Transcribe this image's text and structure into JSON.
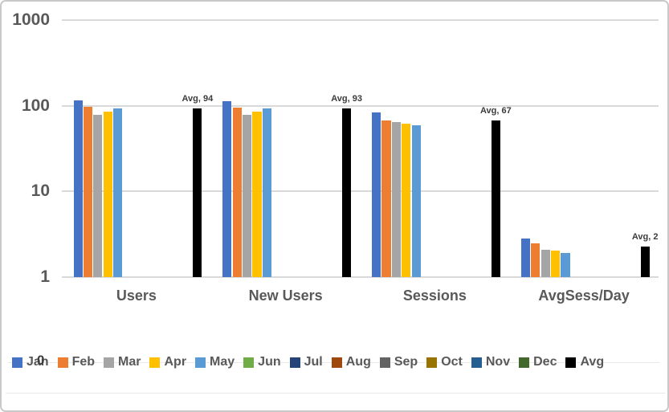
{
  "chart_data": {
    "type": "bar",
    "title": "",
    "xlabel": "",
    "ylabel": "",
    "scale": "log",
    "grid": true,
    "legend_position": "bottom",
    "ylim": [
      1,
      1000
    ],
    "y_ticks": [
      {
        "label": "1000",
        "value": 1000
      },
      {
        "label": "100",
        "value": 100
      },
      {
        "label": "10",
        "value": 10
      },
      {
        "label": "1",
        "value": 1
      }
    ],
    "categories": [
      "Users",
      "New Users",
      "Sessions",
      "AvgSess/Day"
    ],
    "series": [
      {
        "name": "Jan",
        "color": "#4472C4",
        "values": [
          116,
          114,
          84,
          2.8
        ]
      },
      {
        "name": "Feb",
        "color": "#ED7D31",
        "values": [
          97,
          96,
          67,
          2.5
        ]
      },
      {
        "name": "Mar",
        "color": "#A5A5A5",
        "values": [
          79,
          78,
          65,
          2.1
        ]
      },
      {
        "name": "Apr",
        "color": "#FFC000",
        "values": [
          86,
          85,
          62,
          2.05
        ]
      },
      {
        "name": "May",
        "color": "#5B9BD5",
        "values": [
          94,
          93,
          59,
          1.9
        ]
      },
      {
        "name": "Jun",
        "color": "#70AD47",
        "values": [
          null,
          null,
          null,
          null
        ]
      },
      {
        "name": "Jul",
        "color": "#264478",
        "values": [
          null,
          null,
          null,
          null
        ]
      },
      {
        "name": "Aug",
        "color": "#9E480E",
        "values": [
          null,
          null,
          null,
          null
        ]
      },
      {
        "name": "Sep",
        "color": "#636363",
        "values": [
          null,
          null,
          null,
          null
        ]
      },
      {
        "name": "Oct",
        "color": "#997300",
        "values": [
          null,
          null,
          null,
          null
        ]
      },
      {
        "name": "Nov",
        "color": "#255E91",
        "values": [
          null,
          null,
          null,
          null
        ]
      },
      {
        "name": "Dec",
        "color": "#43682B",
        "values": [
          null,
          null,
          null,
          null
        ]
      },
      {
        "name": "Avg",
        "color": "#000000",
        "values": [
          94,
          93,
          67,
          2.27
        ],
        "data_labels": [
          "Avg, 94",
          "Avg, 93",
          "Avg, 67",
          "Avg, 2"
        ]
      }
    ],
    "artifact_overlap_text": "0"
  },
  "colors": {
    "grid": "#d9d9d9",
    "axis_text": "#595959",
    "data_label_text": "#3b3b3b",
    "chart_border": "#c9c9c9"
  }
}
